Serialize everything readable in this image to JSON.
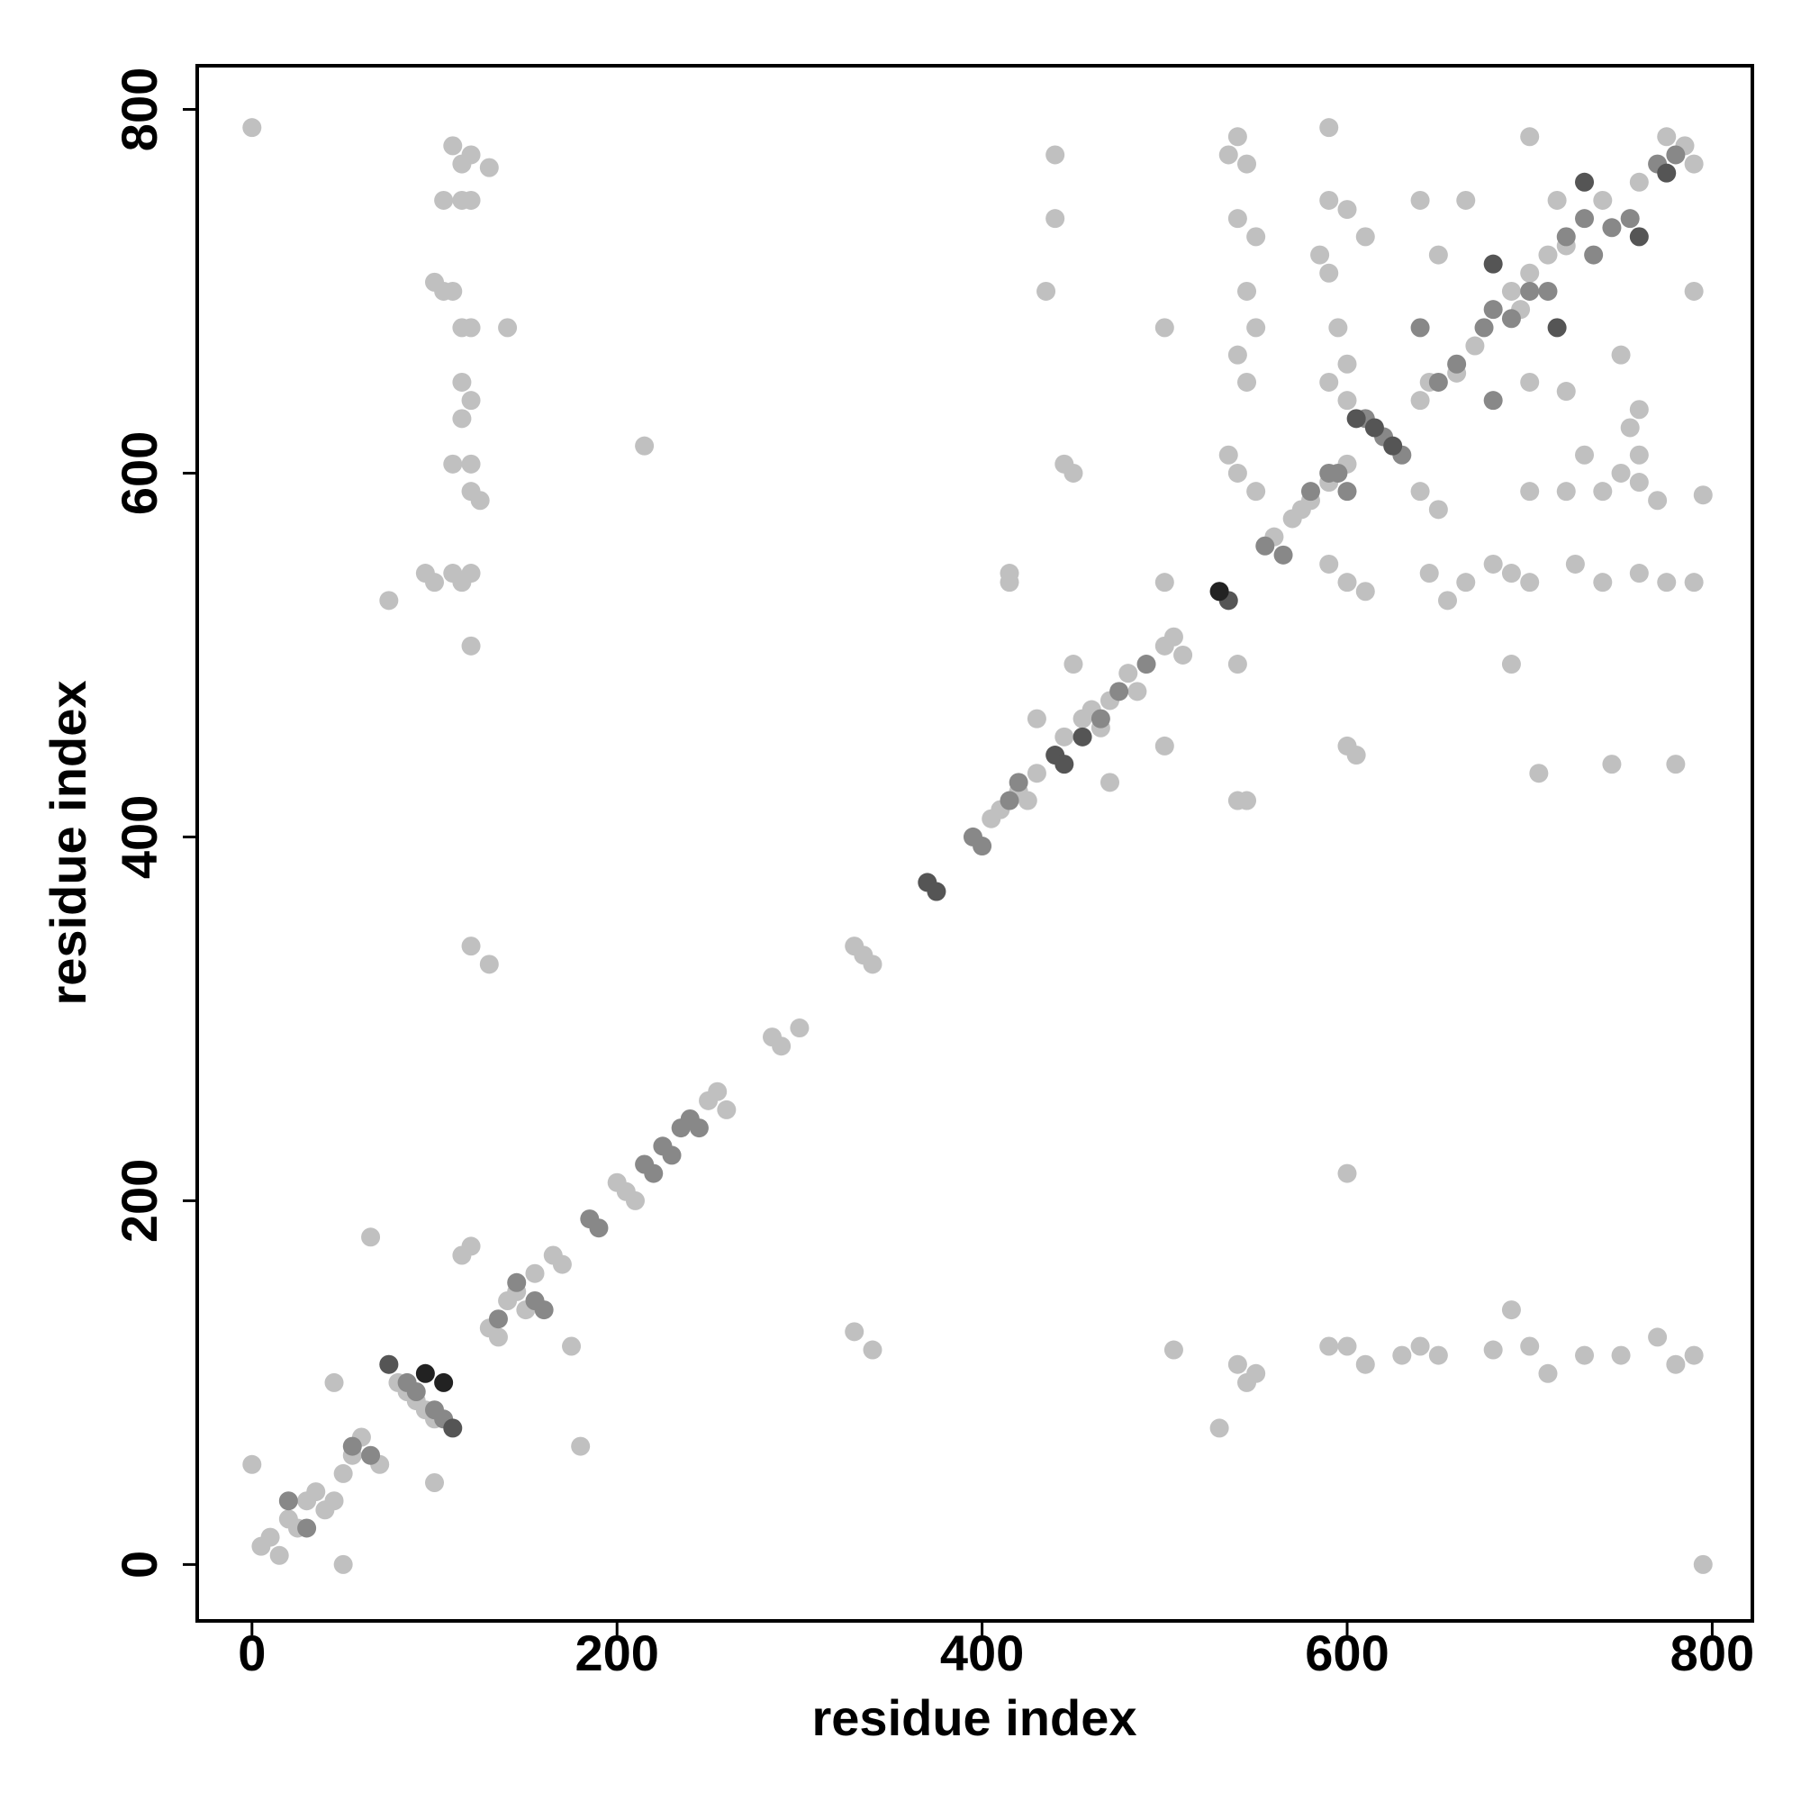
{
  "chart_data": {
    "type": "scatter",
    "x_label": "residue index",
    "y_label": "residue index",
    "xlim": [
      -30,
      822
    ],
    "ylim": [
      -31,
      824
    ],
    "xticks": [
      0,
      200,
      400,
      600,
      800
    ],
    "yticks": [
      0,
      200,
      400,
      600,
      800
    ],
    "grid": false,
    "series": [
      {
        "color": "#c0c0c0",
        "x": [
          5,
          10,
          15,
          20,
          25,
          30,
          35,
          40,
          45,
          50,
          55,
          60,
          70,
          75,
          80,
          85,
          90,
          95,
          100,
          130,
          135,
          140,
          145,
          150,
          155,
          165,
          170,
          200,
          205,
          210,
          250,
          255,
          260,
          285,
          290,
          300,
          330,
          335,
          340,
          405,
          410,
          420,
          425,
          430,
          445,
          455,
          460,
          465,
          470,
          480,
          485,
          500,
          505,
          510,
          560,
          570,
          575,
          580,
          590,
          600,
          640,
          645,
          660,
          670,
          690,
          695,
          700,
          710,
          720,
          740,
          760,
          775,
          785,
          790,
          0,
          110,
          115,
          120,
          130,
          105,
          115,
          120,
          100,
          105,
          110,
          115,
          120,
          115,
          120,
          115,
          110,
          120,
          120,
          125,
          95,
          100,
          110,
          115,
          120,
          75,
          120,
          140,
          215,
          120,
          130,
          120,
          115,
          65,
          180,
          45,
          100,
          50,
          0,
          175,
          330,
          340,
          440,
          440,
          435,
          445,
          450,
          500,
          500,
          415,
          415,
          450,
          500,
          430,
          470,
          535,
          540,
          545,
          540,
          550,
          545,
          550,
          540,
          545,
          535,
          540,
          550,
          540,
          540,
          545,
          600,
          605,
          600,
          590,
          600,
          610,
          590,
          595,
          600,
          590,
          600,
          590,
          600,
          610,
          640,
          650,
          640,
          650,
          645,
          655,
          665,
          680,
          690,
          700,
          720,
          740,
          750,
          760,
          770,
          795,
          700,
          725,
          740,
          760,
          775,
          790,
          690,
          705,
          745,
          780,
          690,
          700,
          710,
          730,
          750,
          770,
          790,
          780,
          505,
          530,
          540,
          545,
          550,
          590,
          600,
          610,
          630,
          640,
          650,
          680,
          795,
          700,
          720,
          750,
          760,
          760,
          790,
          715,
          700,
          665,
          590,
          585,
          730,
          755
        ],
        "values": [
          10,
          15,
          5,
          25,
          20,
          35,
          40,
          30,
          35,
          50,
          60,
          70,
          55,
          110,
          100,
          95,
          90,
          85,
          80,
          130,
          125,
          145,
          150,
          140,
          160,
          170,
          165,
          210,
          205,
          200,
          255,
          260,
          250,
          290,
          285,
          295,
          340,
          335,
          330,
          410,
          415,
          425,
          420,
          435,
          455,
          465,
          470,
          460,
          475,
          490,
          480,
          505,
          510,
          500,
          565,
          575,
          580,
          585,
          595,
          605,
          640,
          650,
          655,
          670,
          700,
          690,
          710,
          720,
          725,
          750,
          760,
          785,
          780,
          770,
          790,
          780,
          770,
          775,
          768,
          750,
          750,
          750,
          705,
          700,
          700,
          680,
          680,
          650,
          640,
          630,
          605,
          605,
          590,
          585,
          545,
          540,
          545,
          540,
          545,
          530,
          505,
          680,
          615,
          340,
          330,
          175,
          170,
          180,
          65,
          100,
          45,
          0,
          55,
          120,
          128,
          118,
          775,
          740,
          700,
          605,
          600,
          680,
          540,
          545,
          540,
          495,
          450,
          465,
          430,
          775,
          785,
          770,
          740,
          730,
          700,
          680,
          665,
          650,
          610,
          600,
          590,
          495,
          420,
          420,
          450,
          445,
          215,
          750,
          745,
          730,
          710,
          680,
          660,
          650,
          640,
          550,
          540,
          535,
          750,
          720,
          590,
          580,
          545,
          530,
          540,
          550,
          545,
          590,
          590,
          590,
          600,
          595,
          585,
          588,
          540,
          550,
          540,
          545,
          540,
          540,
          495,
          435,
          440,
          440,
          140,
          120,
          105,
          115,
          115,
          125,
          115,
          110,
          118,
          75,
          110,
          100,
          105,
          120,
          120,
          110,
          115,
          120,
          115,
          118,
          0,
          650,
          645,
          665,
          635,
          610,
          700,
          750,
          785,
          750,
          790,
          720,
          610,
          625
        ]
      },
      {
        "color": "#888888",
        "x": [
          20,
          30,
          55,
          65,
          85,
          90,
          100,
          105,
          135,
          145,
          155,
          160,
          185,
          190,
          215,
          220,
          225,
          230,
          235,
          240,
          245,
          395,
          400,
          415,
          420,
          465,
          475,
          490,
          530,
          555,
          565,
          580,
          595,
          610,
          620,
          630,
          650,
          660,
          675,
          680,
          690,
          700,
          710,
          720,
          730,
          735,
          745,
          755,
          770,
          780,
          600,
          590,
          640,
          680
        ],
        "values": [
          35,
          20,
          65,
          60,
          100,
          95,
          85,
          80,
          135,
          155,
          145,
          140,
          190,
          185,
          220,
          215,
          230,
          225,
          240,
          245,
          240,
          400,
          395,
          420,
          430,
          465,
          480,
          495,
          535,
          560,
          555,
          590,
          600,
          630,
          620,
          610,
          650,
          660,
          680,
          690,
          685,
          700,
          700,
          730,
          740,
          720,
          735,
          740,
          770,
          775,
          590,
          600,
          680,
          640
        ]
      },
      {
        "color": "#555555",
        "x": [
          75,
          110,
          370,
          375,
          440,
          445,
          455,
          535,
          605,
          615,
          625,
          680,
          715,
          730,
          760,
          775
        ],
        "values": [
          110,
          75,
          375,
          370,
          445,
          440,
          455,
          530,
          630,
          625,
          615,
          715,
          680,
          760,
          730,
          765
        ]
      },
      {
        "color": "#222222",
        "x": [
          95,
          105,
          530
        ],
        "values": [
          105,
          100,
          535
        ]
      }
    ]
  }
}
